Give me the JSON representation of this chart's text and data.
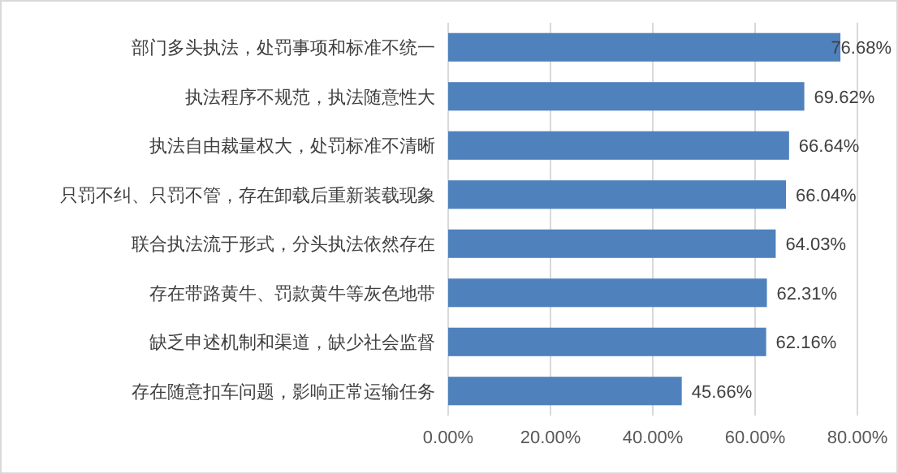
{
  "chart_data": {
    "type": "bar",
    "orientation": "horizontal",
    "categories": [
      "部门多头执法，处罚事项和标准不统一",
      "执法程序不规范，执法随意性大",
      "执法自由裁量权大，处罚标准不清晰",
      "只罚不纠、只罚不管，存在卸载后重新装载现象",
      "联合执法流于形式，分头执法依然存在",
      "存在带路黄牛、罚款黄牛等灰色地带",
      "缺乏申述机制和渠道，缺少社会监督",
      "存在随意扣车问题，影响正常运输任务"
    ],
    "values": [
      76.68,
      69.62,
      66.64,
      66.04,
      64.03,
      62.31,
      62.16,
      45.66
    ],
    "value_labels": [
      "76.68%",
      "69.62%",
      "66.64%",
      "66.04%",
      "64.03%",
      "62.31%",
      "62.16%",
      "45.66%"
    ],
    "color": "#4f81bd",
    "xlim": [
      0,
      80
    ],
    "xticks": [
      {
        "value": 0,
        "label": "0.00%"
      },
      {
        "value": 20,
        "label": "20.00%"
      },
      {
        "value": 40,
        "label": "40.00%"
      },
      {
        "value": 60,
        "label": "60.00%"
      },
      {
        "value": 80,
        "label": "80.00%"
      }
    ],
    "grid": "x"
  }
}
